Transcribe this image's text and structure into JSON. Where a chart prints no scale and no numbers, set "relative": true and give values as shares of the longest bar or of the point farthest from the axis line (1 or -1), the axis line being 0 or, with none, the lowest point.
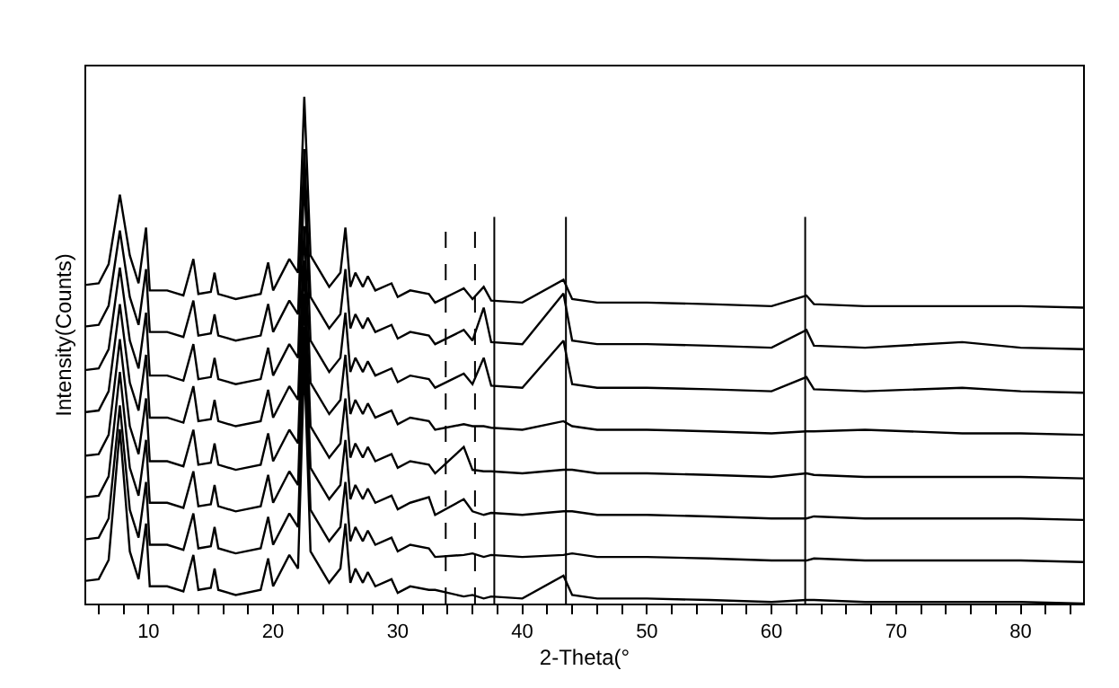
{
  "chart_data": {
    "type": "line",
    "relative": true,
    "xlabel": "2-Theta(°",
    "ylabel": "Intensity(Counts)",
    "x": [
      5.0,
      6.0,
      6.8,
      7.7,
      8.5,
      9.2,
      9.8,
      10.1,
      11.5,
      12.8,
      13.6,
      14.0,
      15.0,
      15.3,
      15.6,
      17.0,
      19.0,
      19.6,
      20.0,
      21.3,
      22.0,
      22.5,
      23.0,
      24.5,
      25.4,
      25.8,
      26.2,
      26.6,
      27.2,
      27.6,
      28.2,
      29.5,
      30.0,
      31.0,
      32.5,
      33.0,
      35.3,
      36.0,
      36.9,
      37.5,
      40.0,
      43.3,
      44.0,
      46.0,
      50.0,
      55.0,
      60.0,
      62.8,
      63.4,
      67.5,
      75.3,
      80.0,
      85.0
    ],
    "series": [
      {
        "color": "#000000",
        "values": [
          0.629,
          0.632,
          0.67,
          0.807,
          0.687,
          0.632,
          0.742,
          0.618,
          0.618,
          0.608,
          0.68,
          0.611,
          0.615,
          0.653,
          0.611,
          0.601,
          0.611,
          0.673,
          0.618,
          0.68,
          0.653,
          1.0,
          0.687,
          0.625,
          0.653,
          0.742,
          0.625,
          0.653,
          0.625,
          0.646,
          0.618,
          0.632,
          0.605,
          0.618,
          0.611,
          0.594,
          0.622,
          0.601,
          0.625,
          0.598,
          0.594,
          0.639,
          0.601,
          0.594,
          0.594,
          0.591,
          0.587,
          0.608,
          0.591,
          0.587,
          0.587,
          0.587,
          0.584
        ]
      },
      {
        "color": "#000000",
        "values": [
          0.547,
          0.55,
          0.588,
          0.736,
          0.605,
          0.55,
          0.66,
          0.536,
          0.536,
          0.526,
          0.598,
          0.529,
          0.533,
          0.571,
          0.529,
          0.519,
          0.529,
          0.591,
          0.536,
          0.598,
          0.571,
          0.897,
          0.605,
          0.543,
          0.571,
          0.66,
          0.543,
          0.571,
          0.543,
          0.564,
          0.536,
          0.55,
          0.523,
          0.536,
          0.529,
          0.512,
          0.54,
          0.519,
          0.584,
          0.516,
          0.512,
          0.612,
          0.519,
          0.512,
          0.512,
          0.509,
          0.505,
          0.54,
          0.509,
          0.505,
          0.516,
          0.505,
          0.502
        ]
      },
      {
        "color": "#000000",
        "values": [
          0.461,
          0.464,
          0.502,
          0.663,
          0.519,
          0.464,
          0.574,
          0.45,
          0.45,
          0.44,
          0.512,
          0.443,
          0.447,
          0.485,
          0.443,
          0.433,
          0.443,
          0.505,
          0.45,
          0.512,
          0.485,
          0.846,
          0.519,
          0.457,
          0.485,
          0.574,
          0.457,
          0.485,
          0.457,
          0.478,
          0.45,
          0.464,
          0.437,
          0.45,
          0.443,
          0.426,
          0.454,
          0.433,
          0.485,
          0.43,
          0.426,
          0.519,
          0.433,
          0.426,
          0.426,
          0.423,
          0.419,
          0.447,
          0.423,
          0.419,
          0.426,
          0.419,
          0.416
        ]
      },
      {
        "color": "#000000",
        "values": [
          0.378,
          0.381,
          0.419,
          0.591,
          0.436,
          0.381,
          0.491,
          0.367,
          0.367,
          0.357,
          0.429,
          0.36,
          0.364,
          0.402,
          0.36,
          0.35,
          0.36,
          0.422,
          0.367,
          0.429,
          0.402,
          0.745,
          0.436,
          0.374,
          0.402,
          0.491,
          0.374,
          0.402,
          0.374,
          0.395,
          0.367,
          0.381,
          0.354,
          0.367,
          0.36,
          0.343,
          0.354,
          0.35,
          0.35,
          0.347,
          0.343,
          0.36,
          0.35,
          0.343,
          0.343,
          0.34,
          0.336,
          0.34,
          0.34,
          0.343,
          0.336,
          0.336,
          0.333
        ]
      },
      {
        "color": "#000000",
        "values": [
          0.292,
          0.295,
          0.333,
          0.522,
          0.35,
          0.295,
          0.405,
          0.281,
          0.281,
          0.271,
          0.343,
          0.274,
          0.278,
          0.316,
          0.274,
          0.264,
          0.274,
          0.336,
          0.281,
          0.343,
          0.316,
          0.677,
          0.35,
          0.288,
          0.316,
          0.405,
          0.288,
          0.316,
          0.288,
          0.309,
          0.281,
          0.295,
          0.268,
          0.281,
          0.274,
          0.257,
          0.309,
          0.264,
          0.261,
          0.261,
          0.257,
          0.264,
          0.264,
          0.257,
          0.257,
          0.254,
          0.25,
          0.257,
          0.254,
          0.25,
          0.25,
          0.25,
          0.247
        ]
      },
      {
        "color": "#000000",
        "values": [
          0.21,
          0.213,
          0.251,
          0.457,
          0.268,
          0.213,
          0.323,
          0.199,
          0.199,
          0.189,
          0.261,
          0.192,
          0.196,
          0.234,
          0.192,
          0.182,
          0.192,
          0.254,
          0.199,
          0.261,
          0.234,
          0.612,
          0.268,
          0.206,
          0.234,
          0.323,
          0.206,
          0.234,
          0.206,
          0.227,
          0.199,
          0.213,
          0.186,
          0.199,
          0.21,
          0.175,
          0.206,
          0.182,
          0.175,
          0.179,
          0.175,
          0.182,
          0.182,
          0.175,
          0.175,
          0.172,
          0.168,
          0.168,
          0.172,
          0.168,
          0.168,
          0.168,
          0.165
        ]
      },
      {
        "color": "#000000",
        "values": [
          0.127,
          0.13,
          0.168,
          0.391,
          0.185,
          0.13,
          0.24,
          0.116,
          0.116,
          0.106,
          0.178,
          0.109,
          0.113,
          0.151,
          0.109,
          0.099,
          0.109,
          0.171,
          0.116,
          0.178,
          0.151,
          0.546,
          0.185,
          0.123,
          0.151,
          0.24,
          0.123,
          0.151,
          0.123,
          0.144,
          0.116,
          0.13,
          0.103,
          0.116,
          0.109,
          0.092,
          0.096,
          0.099,
          0.092,
          0.096,
          0.092,
          0.096,
          0.099,
          0.092,
          0.092,
          0.089,
          0.085,
          0.085,
          0.089,
          0.085,
          0.085,
          0.085,
          0.082
        ]
      },
      {
        "color": "#000000",
        "values": [
          0.045,
          0.048,
          0.086,
          0.344,
          0.103,
          0.048,
          0.158,
          0.034,
          0.034,
          0.024,
          0.096,
          0.027,
          0.031,
          0.069,
          0.027,
          0.017,
          0.027,
          0.089,
          0.034,
          0.096,
          0.069,
          0.481,
          0.103,
          0.041,
          0.069,
          0.158,
          0.041,
          0.069,
          0.041,
          0.062,
          0.034,
          0.048,
          0.021,
          0.034,
          0.027,
          0.027,
          0.014,
          0.017,
          0.01,
          0.014,
          0.01,
          0.055,
          0.017,
          0.01,
          0.01,
          0.007,
          0.003,
          0.007,
          0.007,
          0.003,
          0.003,
          0.003,
          0.0
        ]
      }
    ],
    "xlim": [
      5,
      85
    ],
    "xticks": [
      {
        "value": 6,
        "label": null
      },
      {
        "value": 8,
        "label": null
      },
      10,
      {
        "value": 12,
        "label": null
      },
      {
        "value": 14,
        "label": null
      },
      {
        "value": 16,
        "label": null
      },
      {
        "value": 18,
        "label": null
      },
      20,
      {
        "value": 22,
        "label": null
      },
      {
        "value": 24,
        "label": null
      },
      {
        "value": 26,
        "label": null
      },
      {
        "value": 28,
        "label": null
      },
      30,
      {
        "value": 32,
        "label": null
      },
      {
        "value": 34,
        "label": null
      },
      {
        "value": 36,
        "label": null
      },
      {
        "value": 38,
        "label": null
      },
      40,
      {
        "value": 42,
        "label": null
      },
      {
        "value": 44,
        "label": null
      },
      {
        "value": 46,
        "label": null
      },
      {
        "value": 48,
        "label": null
      },
      50,
      {
        "value": 52,
        "label": null
      },
      {
        "value": 54,
        "label": null
      },
      {
        "value": 56,
        "label": null
      },
      {
        "value": 58,
        "label": null
      },
      60,
      {
        "value": 62,
        "label": null
      },
      {
        "value": 64,
        "label": null
      },
      {
        "value": 66,
        "label": null
      },
      {
        "value": 68,
        "label": null
      },
      70,
      {
        "value": 72,
        "label": null
      },
      {
        "value": 74,
        "label": null
      },
      {
        "value": 76,
        "label": null
      },
      {
        "value": 78,
        "label": null
      },
      80,
      {
        "value": 82,
        "label": null
      },
      {
        "value": 84,
        "label": null
      }
    ],
    "ref_lines": [
      {
        "axis": "x",
        "value": 33.85,
        "line_style": "dashed",
        "color": "#000000"
      },
      {
        "axis": "x",
        "value": 36.2,
        "line_style": "dashed",
        "color": "#000000"
      },
      {
        "axis": "x",
        "value": 37.75,
        "line_style": "solid",
        "color": "#000000"
      },
      {
        "axis": "x",
        "value": 43.5,
        "line_style": "solid",
        "color": "#000000"
      },
      {
        "axis": "x",
        "value": 62.7,
        "line_style": "solid",
        "color": "#000000"
      }
    ],
    "tick_labels": "x",
    "marker": "none",
    "line_style": "solid"
  }
}
